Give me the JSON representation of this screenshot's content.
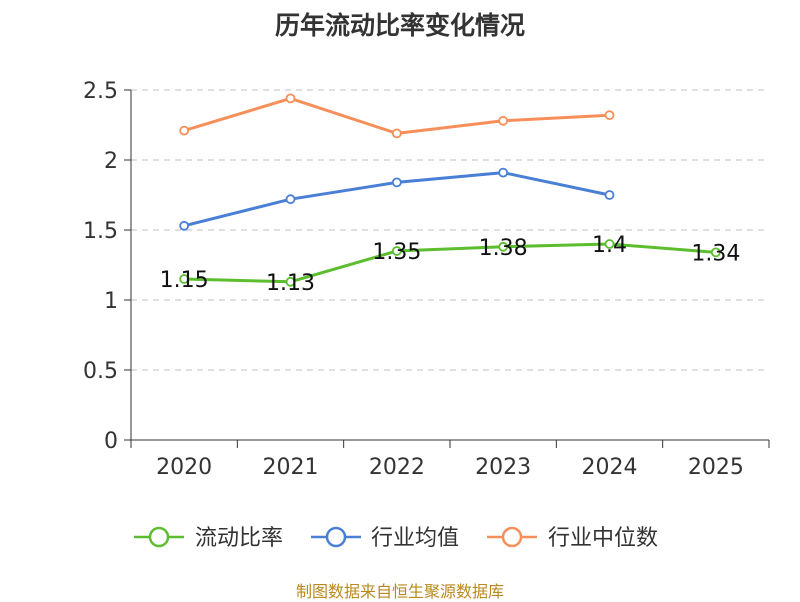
{
  "chart_data": {
    "type": "line",
    "title": "历年流动比率变化情况",
    "categories": [
      "2020",
      "2021",
      "2022",
      "2023",
      "2024",
      "2025"
    ],
    "ylim": [
      0,
      2.5
    ],
    "yticks": [
      0,
      0.5,
      1,
      1.5,
      2,
      2.5
    ],
    "ytick_labels": [
      "0",
      "0.5",
      "1",
      "1.5",
      "2",
      "2.5"
    ],
    "grid": true,
    "legend_position": "bottom",
    "series": [
      {
        "name": "流动比率",
        "color": "#5cbd2e",
        "values": [
          1.15,
          1.13,
          1.35,
          1.38,
          1.4,
          1.34
        ],
        "labels": [
          "1.15",
          "1.13",
          "1.35",
          "1.38",
          "1.4",
          "1.34"
        ]
      },
      {
        "name": "行业均值",
        "color": "#4a7fd6",
        "values": [
          1.53,
          1.72,
          1.84,
          1.91,
          1.75,
          null
        ]
      },
      {
        "name": "行业中位数",
        "color": "#f78f5a",
        "values": [
          2.21,
          2.44,
          2.19,
          2.28,
          2.32,
          null
        ]
      }
    ]
  },
  "footer": {
    "source": "制图数据来自恒生聚源数据库"
  }
}
